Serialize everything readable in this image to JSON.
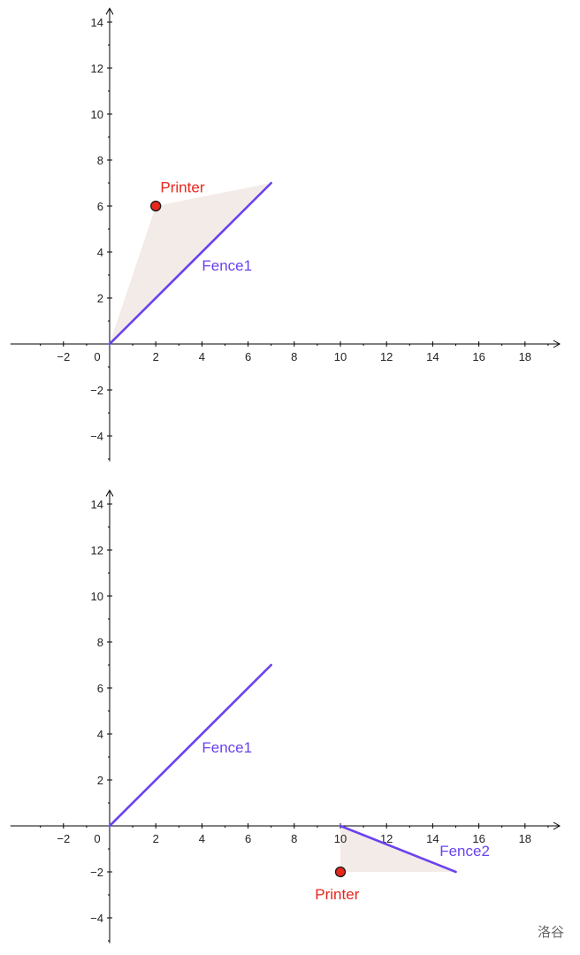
{
  "chart_data": [
    {
      "type": "geometry",
      "xlim": [
        -4.3,
        19.5
      ],
      "ylim": [
        -5.1,
        14.6
      ],
      "x_ticks": [
        -2,
        0,
        2,
        4,
        6,
        8,
        10,
        12,
        14,
        16,
        18
      ],
      "y_ticks": [
        -4,
        -2,
        2,
        4,
        6,
        8,
        10,
        12,
        14
      ],
      "colors": {
        "fence": "#6a42f0",
        "point": "#e8261c",
        "region": "#f3ebe7",
        "axis": "#000000"
      },
      "regions": [
        {
          "points": [
            [
              0,
              0
            ],
            [
              2,
              6
            ],
            [
              7,
              7
            ]
          ]
        }
      ],
      "segments": [
        {
          "name": "Fence1",
          "from": [
            0,
            0
          ],
          "to": [
            7,
            7
          ],
          "label_at": [
            4,
            3.2
          ]
        }
      ],
      "points": [
        {
          "name": "Printer",
          "x": 2,
          "y": 6,
          "label_at": [
            2.2,
            6.6
          ]
        }
      ]
    },
    {
      "type": "geometry",
      "xlim": [
        -4.3,
        19.5
      ],
      "ylim": [
        -5.1,
        14.6
      ],
      "x_ticks": [
        -2,
        0,
        2,
        4,
        6,
        8,
        10,
        12,
        14,
        16,
        18
      ],
      "y_ticks": [
        -4,
        -2,
        2,
        4,
        6,
        8,
        10,
        12,
        14
      ],
      "colors": {
        "fence": "#6a42f0",
        "point": "#e8261c",
        "region": "#f3ebe7",
        "axis": "#000000"
      },
      "regions": [
        {
          "points": [
            [
              10,
              0
            ],
            [
              15,
              -2
            ],
            [
              10,
              -2
            ]
          ]
        }
      ],
      "segments": [
        {
          "name": "Fence1",
          "from": [
            0,
            0
          ],
          "to": [
            7,
            7
          ],
          "label_at": [
            4,
            3.2
          ]
        },
        {
          "name": "Fence2",
          "from": [
            10,
            0
          ],
          "to": [
            15,
            -2
          ],
          "label_at": [
            14.3,
            -1.3
          ]
        }
      ],
      "points": [
        {
          "name": "Printer",
          "x": 10,
          "y": -2,
          "label_at": [
            8.9,
            -3.2
          ]
        }
      ]
    }
  ],
  "watermark": "洛谷"
}
